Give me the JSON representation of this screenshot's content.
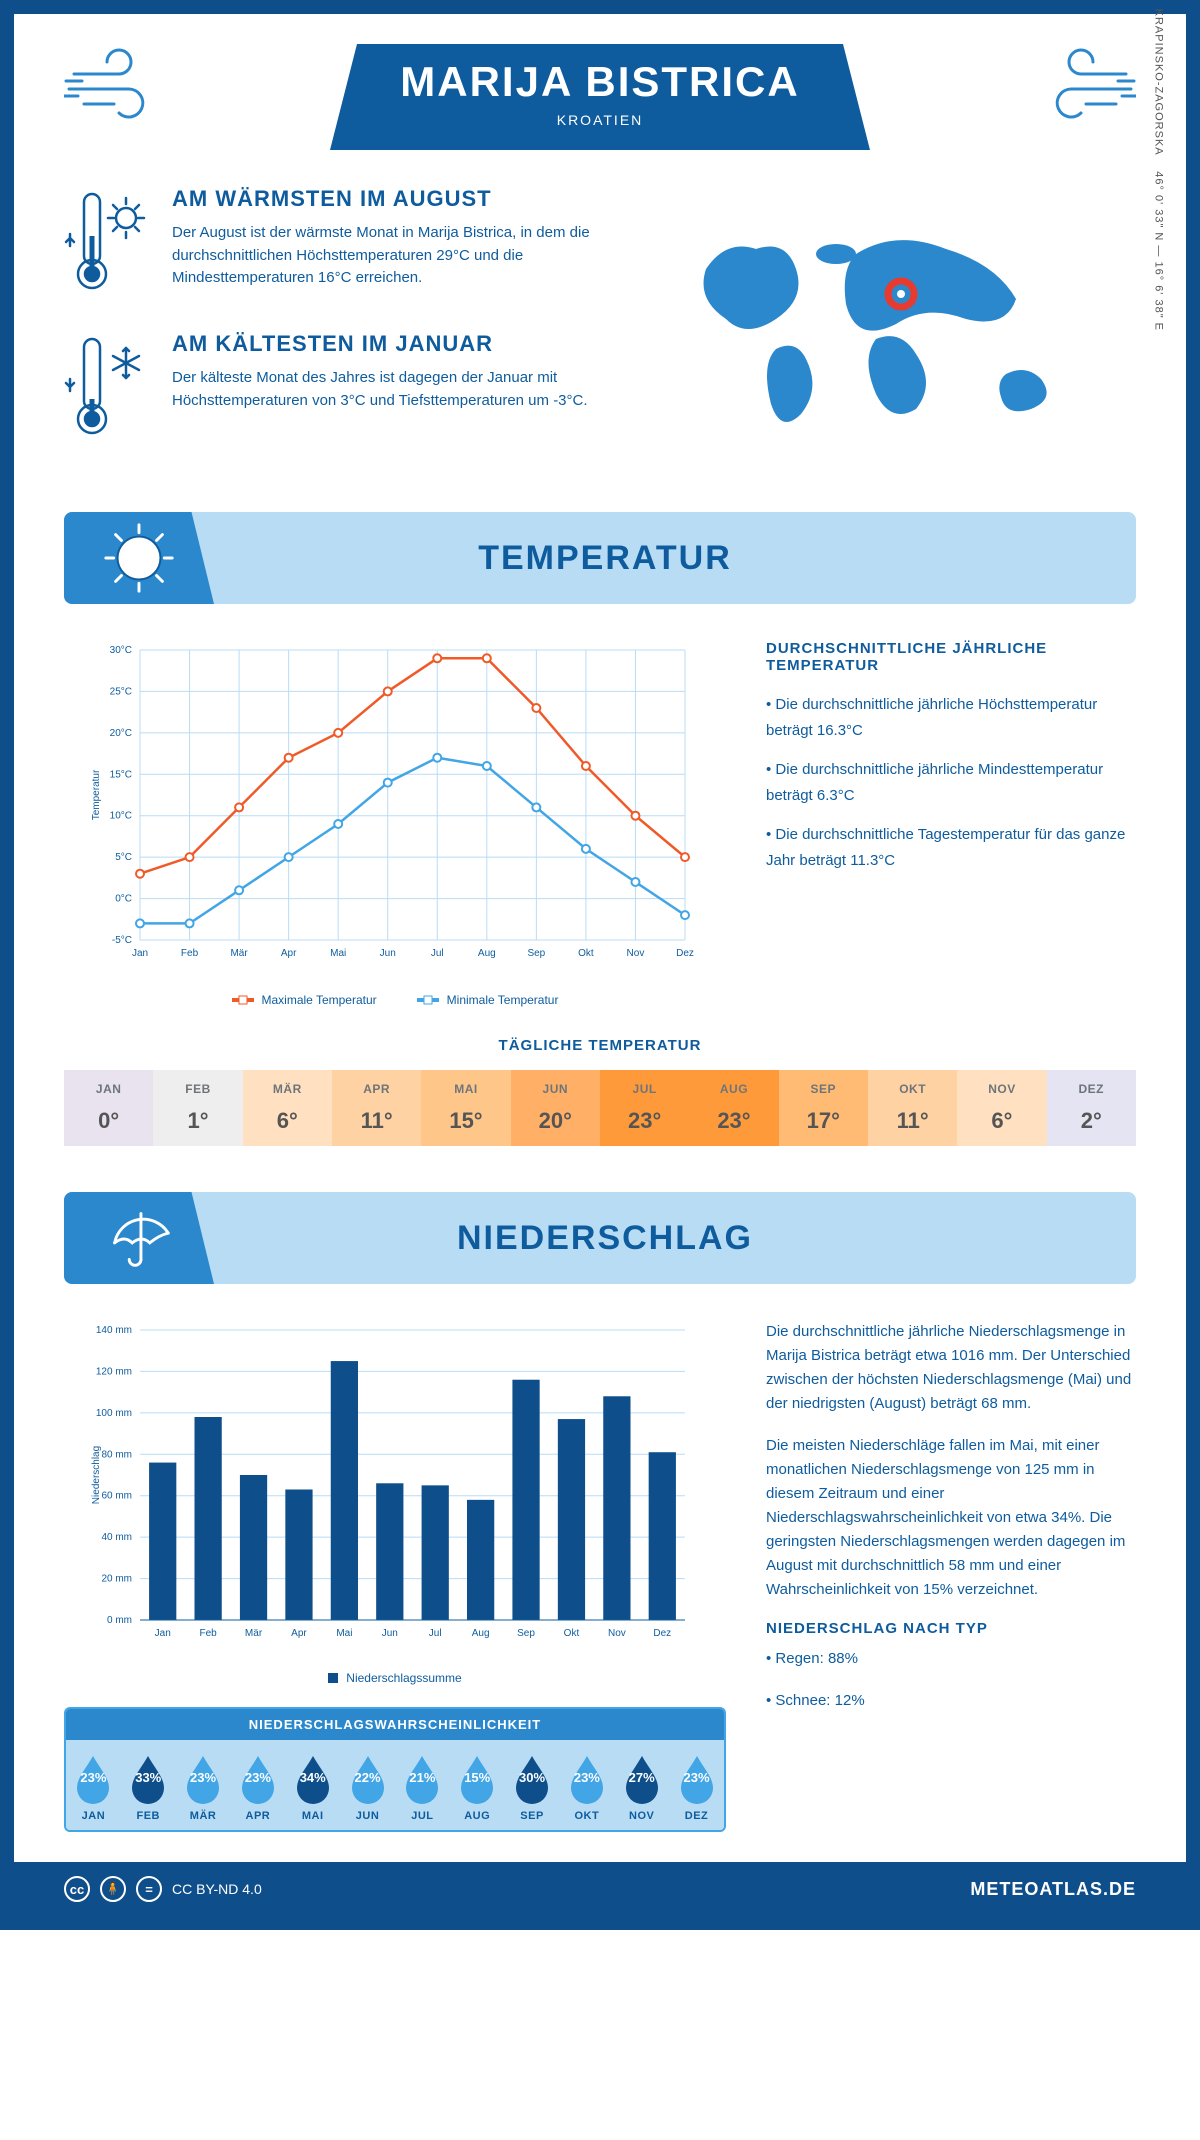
{
  "header": {
    "title": "MARIJA BISTRICA",
    "subtitle": "KROATIEN"
  },
  "coords": {
    "region": "KRAPINSKO-ZAGORSKA",
    "lat": "46° 0' 33\" N",
    "lon": "16° 6' 38\" E"
  },
  "intro": {
    "warm": {
      "title": "AM WÄRMSTEN IM AUGUST",
      "text": "Der August ist der wärmste Monat in Marija Bistrica, in dem die durchschnittlichen Höchsttemperaturen 29°C und die Mindesttemperaturen 16°C erreichen."
    },
    "cold": {
      "title": "AM KÄLTESTEN IM JANUAR",
      "text": "Der kälteste Monat des Jahres ist dagegen der Januar mit Höchsttemperaturen von 3°C und Tiefsttemperaturen um -3°C."
    }
  },
  "temperature": {
    "banner_title": "TEMPERATUR",
    "chart": {
      "months": [
        "Jan",
        "Feb",
        "Mär",
        "Apr",
        "Mai",
        "Jun",
        "Jul",
        "Aug",
        "Sep",
        "Okt",
        "Nov",
        "Dez"
      ],
      "max_series": [
        3,
        5,
        11,
        17,
        20,
        25,
        29,
        29,
        23,
        16,
        10,
        5
      ],
      "min_series": [
        -3,
        -3,
        1,
        5,
        9,
        14,
        17,
        16,
        11,
        6,
        2,
        -2
      ],
      "max_color": "#f05a28",
      "min_color": "#42a5e6",
      "ymin": -5,
      "ymax": 30,
      "ystep": 5,
      "ylabel": "Temperatur",
      "grid_color": "#b9dcf5",
      "legend_max": "Maximale Temperatur",
      "legend_min": "Minimale Temperatur"
    },
    "stats": {
      "heading": "DURCHSCHNITTLICHE JÄHRLICHE TEMPERATUR",
      "b1": "• Die durchschnittliche jährliche Höchsttemperatur beträgt 16.3°C",
      "b2": "• Die durchschnittliche jährliche Mindesttemperatur beträgt 6.3°C",
      "b3": "• Die durchschnittliche Tagestemperatur für das ganze Jahr beträgt 11.3°C"
    },
    "daily": {
      "title": "TÄGLICHE TEMPERATUR",
      "months": [
        "JAN",
        "FEB",
        "MÄR",
        "APR",
        "MAI",
        "JUN",
        "JUL",
        "AUG",
        "SEP",
        "OKT",
        "NOV",
        "DEZ"
      ],
      "values": [
        "0°",
        "1°",
        "6°",
        "11°",
        "15°",
        "20°",
        "23°",
        "23°",
        "17°",
        "11°",
        "6°",
        "2°"
      ],
      "colors": [
        "#e9e3f0",
        "#eeeeee",
        "#ffe1c1",
        "#ffd2a3",
        "#ffc68a",
        "#ffb066",
        "#ff9a3a",
        "#ff9a3a",
        "#ffbb73",
        "#ffd2a3",
        "#ffe1c1",
        "#e4e4f2"
      ]
    }
  },
  "precip": {
    "banner_title": "NIEDERSCHLAG",
    "chart": {
      "months": [
        "Jan",
        "Feb",
        "Mär",
        "Apr",
        "Mai",
        "Jun",
        "Jul",
        "Aug",
        "Sep",
        "Okt",
        "Nov",
        "Dez"
      ],
      "values": [
        76,
        98,
        70,
        63,
        125,
        66,
        65,
        58,
        116,
        97,
        108,
        81
      ],
      "ymax": 140,
      "ystep": 20,
      "ylabel": "Niederschlag",
      "bar_color": "#0e4e8a",
      "grid_color": "#b9dcf5",
      "legend": "Niederschlagssumme"
    },
    "text": {
      "p1": "Die durchschnittliche jährliche Niederschlagsmenge in Marija Bistrica beträgt etwa 1016 mm. Der Unterschied zwischen der höchsten Niederschlagsmenge (Mai) und der niedrigsten (August) beträgt 68 mm.",
      "p2": "Die meisten Niederschläge fallen im Mai, mit einer monatlichen Niederschlagsmenge von 125 mm in diesem Zeitraum und einer Niederschlagswahrscheinlichkeit von etwa 34%. Die geringsten Niederschlagsmengen werden dagegen im August mit durchschnittlich 58 mm und einer Wahrscheinlichkeit von 15% verzeichnet.",
      "type_heading": "NIEDERSCHLAG NACH TYP",
      "rain": "• Regen: 88%",
      "snow": "• Schnee: 12%"
    },
    "prob": {
      "title": "NIEDERSCHLAGSWAHRSCHEINLICHKEIT",
      "months": [
        "JAN",
        "FEB",
        "MÄR",
        "APR",
        "MAI",
        "JUN",
        "JUL",
        "AUG",
        "SEP",
        "OKT",
        "NOV",
        "DEZ"
      ],
      "values": [
        "23%",
        "33%",
        "23%",
        "23%",
        "34%",
        "22%",
        "21%",
        "15%",
        "30%",
        "23%",
        "27%",
        "23%"
      ],
      "colors": [
        "#42a5e6",
        "#0e4e8a",
        "#42a5e6",
        "#42a5e6",
        "#0e4e8a",
        "#42a5e6",
        "#42a5e6",
        "#42a5e6",
        "#0e4e8a",
        "#42a5e6",
        "#0e4e8a",
        "#42a5e6"
      ]
    }
  },
  "footer": {
    "license": "CC BY-ND 4.0",
    "site": "METEOATLAS.DE"
  }
}
